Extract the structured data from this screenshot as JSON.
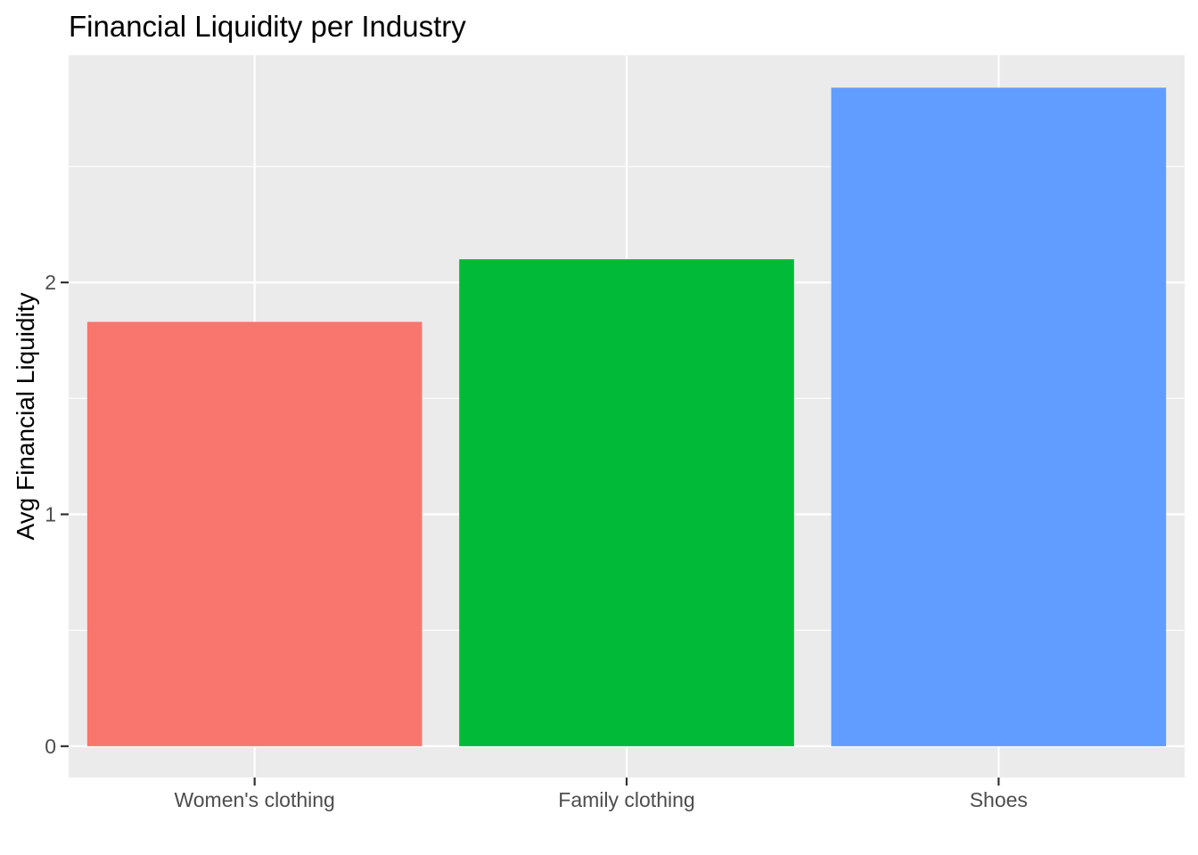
{
  "chart_data": {
    "type": "bar",
    "title": "Financial Liquidity per Industry",
    "xlabel": "",
    "ylabel": "Avg Financial Liquidity",
    "categories": [
      "Women's clothing",
      "Family clothing",
      "Shoes"
    ],
    "values": [
      1.83,
      2.1,
      2.84
    ],
    "colors": [
      "#F8766D",
      "#00BA38",
      "#619CFF"
    ],
    "ylim": [
      -0.135,
      2.98
    ],
    "yticks": [
      0,
      1,
      2
    ],
    "ytick_labels": [
      "0",
      "1",
      "2"
    ],
    "grid": true,
    "legend": "none",
    "panel_background": "#EBEBEB",
    "grid_color": "#FFFFFF"
  }
}
